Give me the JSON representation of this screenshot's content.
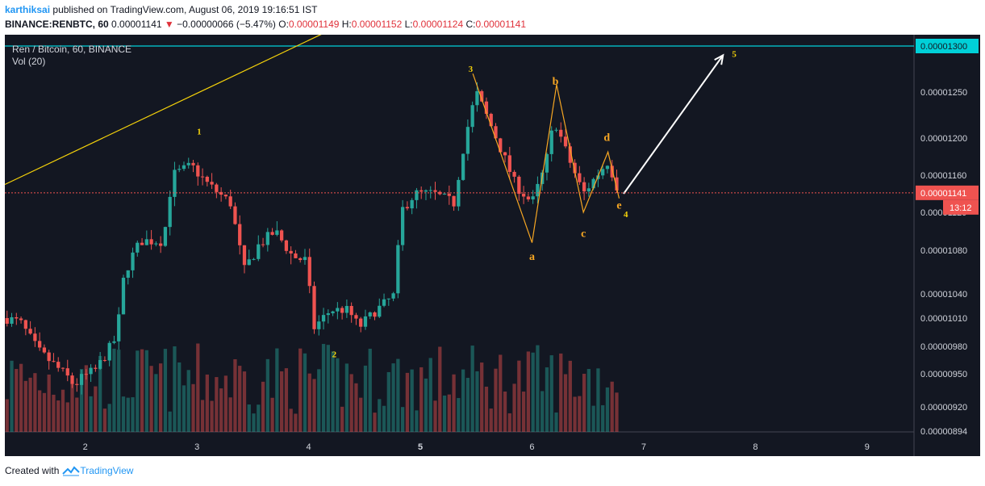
{
  "header": {
    "author": "karthiksai",
    "published": "published on TradingView.com, August 06, 2019 19:16:51 IST",
    "symbol": "BINANCE:RENBTC, 60",
    "last": "0.00001141",
    "arrow": "▼",
    "change": "−0.00000066 (−5.47%)",
    "o_label": "O:",
    "o_val": "0.00001149",
    "h_label": "H:",
    "h_val": "0.00001152",
    "l_label": "L:",
    "l_val": "0.00001124",
    "c_label": "C:",
    "c_val": "0.00001141"
  },
  "legend": {
    "title": "Ren / Bitcoin, 60, BINANCE",
    "vol": "Vol (20)"
  },
  "footer": {
    "created": "Created with",
    "brand": "TradingView"
  },
  "chart_data": {
    "type": "candlestick",
    "price_axis_labels": [
      "0.00001300",
      "0.00001250",
      "0.00001200",
      "0.00001160",
      "0.00001120",
      "0.00001080",
      "0.00001040",
      "0.00001010",
      "0.00000980",
      "0.00000950",
      "0.00000920",
      "0.00000894"
    ],
    "price_axis_values": [
      1.3e-05,
      1.25e-05,
      1.2e-05,
      1.16e-05,
      1.12e-05,
      1.08e-05,
      1.04e-05,
      1.01e-05,
      9.8e-06,
      9.5e-06,
      9.2e-06,
      8.94e-06
    ],
    "last_price_label": "0.00001141",
    "last_price": 1.141e-05,
    "countdown": "13:12",
    "x_labels": [
      "2",
      "3",
      "4",
      "5",
      "6",
      "7",
      "8",
      "9"
    ],
    "x_values": [
      2,
      3,
      4,
      5,
      6,
      7,
      8,
      9
    ],
    "x_range": [
      1.28,
      9.42
    ],
    "wave_labels": [
      {
        "text": "1",
        "x": 3.02,
        "y": 1.204e-05,
        "color": "#f5d20a"
      },
      {
        "text": "2",
        "x": 4.23,
        "y": 9.68e-06,
        "color": "#f5d20a"
      },
      {
        "text": "3",
        "x": 5.45,
        "y": 1.272e-05,
        "color": "#f5d20a"
      },
      {
        "text": "4",
        "x": 6.84,
        "y": 1.115e-05,
        "color": "#f5d20a"
      },
      {
        "text": "5",
        "x": 7.81,
        "y": 1.288e-05,
        "color": "#f5d20a"
      },
      {
        "text": "a",
        "x": 6.0,
        "y": 1.071e-05,
        "color": "#f6a623"
      },
      {
        "text": "b",
        "x": 6.21,
        "y": 1.258e-05,
        "color": "#f6a623"
      },
      {
        "text": "c",
        "x": 6.46,
        "y": 1.094e-05,
        "color": "#f6a623"
      },
      {
        "text": "d",
        "x": 6.67,
        "y": 1.197e-05,
        "color": "#f6a623"
      },
      {
        "text": "e",
        "x": 6.78,
        "y": 1.124e-05,
        "color": "#f6a623"
      }
    ],
    "abcde_path": [
      [
        5.47,
        1.27e-05
      ],
      [
        6.0,
        1.088e-05
      ],
      [
        6.22,
        1.258e-05
      ],
      [
        6.46,
        1.12e-05
      ],
      [
        6.68,
        1.185e-05
      ],
      [
        6.78,
        1.135e-05
      ]
    ],
    "trendline": [
      [
        1.28,
        1.15e-05
      ],
      [
        4.24,
        1.32e-05
      ]
    ],
    "projection_arrow": [
      [
        6.82,
        1.14e-05
      ],
      [
        7.71,
        1.29e-05
      ]
    ],
    "colors": {
      "up": "#26a69a",
      "down": "#ef5350",
      "trend": "#f5d20a",
      "wave": "#f6a623",
      "hline": "#00d0d8",
      "last": "#ef5350"
    }
  }
}
